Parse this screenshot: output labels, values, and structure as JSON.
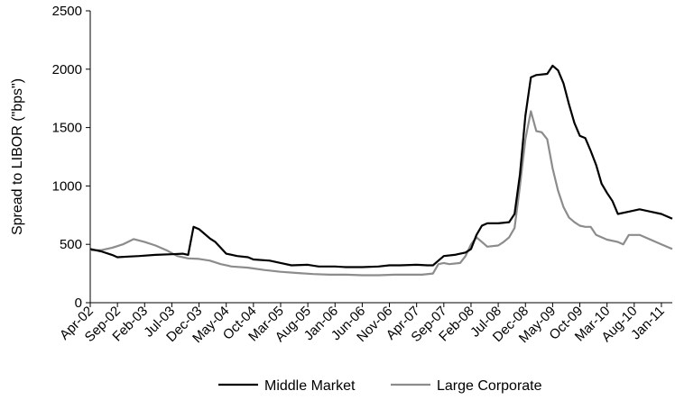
{
  "chart_data": {
    "type": "line",
    "title": "",
    "xlabel": "",
    "ylabel": "Spread to LIBOR (\"bps\")",
    "ylim": [
      0,
      2500
    ],
    "yticks": [
      0,
      500,
      1000,
      1500,
      2000,
      2500
    ],
    "ytick_labels": [
      "0",
      "500",
      "1000",
      "1500",
      "2000",
      "2500"
    ],
    "x_tick_labels": [
      "Apr-02",
      "Sep-02",
      "Feb-03",
      "Jul-03",
      "Dec-03",
      "May-04",
      "Oct-04",
      "Mar-05",
      "Aug-05",
      "Jan-06",
      "Jun-06",
      "Nov-06",
      "Apr-07",
      "Sep-07",
      "Feb-08",
      "Jul-08",
      "Dec-08",
      "May-09",
      "Oct-09",
      "Mar-10",
      "Aug-10",
      "Jan-11"
    ],
    "xlim": [
      "2002-04",
      "2011-03"
    ],
    "grid": false,
    "legend_position": "bottom",
    "series": [
      {
        "name": "Middle Market",
        "color": "#000000",
        "points": [
          [
            "2002-04",
            460
          ],
          [
            "2002-06",
            440
          ],
          [
            "2002-08",
            410
          ],
          [
            "2002-09",
            390
          ],
          [
            "2002-11",
            395
          ],
          [
            "2003-01",
            400
          ],
          [
            "2003-04",
            410
          ],
          [
            "2003-07",
            415
          ],
          [
            "2003-09",
            420
          ],
          [
            "2003-10",
            410
          ],
          [
            "2003-11",
            650
          ],
          [
            "2003-12",
            630
          ],
          [
            "2004-01",
            590
          ],
          [
            "2004-02",
            550
          ],
          [
            "2004-03",
            520
          ],
          [
            "2004-04",
            470
          ],
          [
            "2004-05",
            420
          ],
          [
            "2004-07",
            400
          ],
          [
            "2004-09",
            390
          ],
          [
            "2004-10",
            370
          ],
          [
            "2005-01",
            360
          ],
          [
            "2005-03",
            340
          ],
          [
            "2005-05",
            320
          ],
          [
            "2005-08",
            325
          ],
          [
            "2005-10",
            310
          ],
          [
            "2006-01",
            310
          ],
          [
            "2006-03",
            305
          ],
          [
            "2006-06",
            305
          ],
          [
            "2006-09",
            310
          ],
          [
            "2006-11",
            320
          ],
          [
            "2007-01",
            320
          ],
          [
            "2007-04",
            325
          ],
          [
            "2007-06",
            320
          ],
          [
            "2007-07",
            320
          ],
          [
            "2007-08",
            360
          ],
          [
            "2007-09",
            400
          ],
          [
            "2007-11",
            410
          ],
          [
            "2008-01",
            430
          ],
          [
            "2008-02",
            460
          ],
          [
            "2008-03",
            580
          ],
          [
            "2008-04",
            660
          ],
          [
            "2008-05",
            680
          ],
          [
            "2008-07",
            680
          ],
          [
            "2008-09",
            690
          ],
          [
            "2008-10",
            760
          ],
          [
            "2008-11",
            1100
          ],
          [
            "2008-12",
            1600
          ],
          [
            "2009-01",
            1930
          ],
          [
            "2009-02",
            1950
          ],
          [
            "2009-04",
            1960
          ],
          [
            "2009-05",
            2030
          ],
          [
            "2009-06",
            1990
          ],
          [
            "2009-07",
            1880
          ],
          [
            "2009-08",
            1700
          ],
          [
            "2009-09",
            1540
          ],
          [
            "2009-10",
            1430
          ],
          [
            "2009-11",
            1410
          ],
          [
            "2009-12",
            1300
          ],
          [
            "2010-01",
            1180
          ],
          [
            "2010-02",
            1020
          ],
          [
            "2010-03",
            940
          ],
          [
            "2010-04",
            870
          ],
          [
            "2010-05",
            760
          ],
          [
            "2010-07",
            780
          ],
          [
            "2010-09",
            800
          ],
          [
            "2010-11",
            780
          ],
          [
            "2011-01",
            760
          ],
          [
            "2011-03",
            720
          ]
        ]
      },
      {
        "name": "Large Corporate",
        "color": "#8c8c8c",
        "points": [
          [
            "2002-04",
            450
          ],
          [
            "2002-06",
            450
          ],
          [
            "2002-08",
            470
          ],
          [
            "2002-10",
            500
          ],
          [
            "2002-12",
            545
          ],
          [
            "2003-02",
            520
          ],
          [
            "2003-04",
            490
          ],
          [
            "2003-06",
            450
          ],
          [
            "2003-08",
            400
          ],
          [
            "2003-10",
            380
          ],
          [
            "2003-12",
            375
          ],
          [
            "2004-02",
            360
          ],
          [
            "2004-04",
            330
          ],
          [
            "2004-06",
            310
          ],
          [
            "2004-09",
            300
          ],
          [
            "2004-12",
            280
          ],
          [
            "2005-03",
            265
          ],
          [
            "2005-06",
            255
          ],
          [
            "2005-09",
            245
          ],
          [
            "2005-12",
            240
          ],
          [
            "2006-03",
            240
          ],
          [
            "2006-06",
            235
          ],
          [
            "2006-09",
            235
          ],
          [
            "2006-12",
            240
          ],
          [
            "2007-03",
            240
          ],
          [
            "2007-05",
            240
          ],
          [
            "2007-07",
            250
          ],
          [
            "2007-08",
            330
          ],
          [
            "2007-09",
            340
          ],
          [
            "2007-10",
            330
          ],
          [
            "2007-12",
            340
          ],
          [
            "2008-01",
            400
          ],
          [
            "2008-02",
            500
          ],
          [
            "2008-03",
            560
          ],
          [
            "2008-04",
            520
          ],
          [
            "2008-05",
            480
          ],
          [
            "2008-07",
            490
          ],
          [
            "2008-08",
            520
          ],
          [
            "2008-09",
            560
          ],
          [
            "2008-10",
            640
          ],
          [
            "2008-11",
            1000
          ],
          [
            "2008-12",
            1400
          ],
          [
            "2009-01",
            1640
          ],
          [
            "2009-02",
            1470
          ],
          [
            "2009-03",
            1460
          ],
          [
            "2009-04",
            1400
          ],
          [
            "2009-05",
            1150
          ],
          [
            "2009-06",
            960
          ],
          [
            "2009-07",
            820
          ],
          [
            "2009-08",
            730
          ],
          [
            "2009-09",
            690
          ],
          [
            "2009-10",
            660
          ],
          [
            "2009-11",
            650
          ],
          [
            "2009-12",
            650
          ],
          [
            "2010-01",
            580
          ],
          [
            "2010-03",
            540
          ],
          [
            "2010-05",
            520
          ],
          [
            "2010-06",
            500
          ],
          [
            "2010-07",
            580
          ],
          [
            "2010-09",
            580
          ],
          [
            "2010-11",
            540
          ],
          [
            "2011-01",
            500
          ],
          [
            "2011-03",
            460
          ]
        ]
      }
    ]
  }
}
